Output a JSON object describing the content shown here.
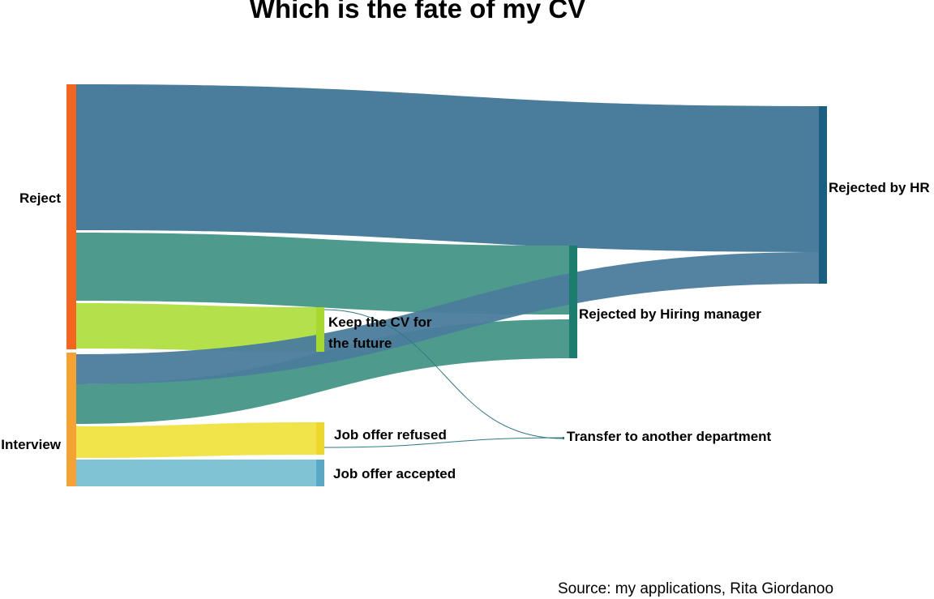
{
  "title": "Which is the fate of my CV",
  "source": "Source: my applications, Rita Giordanoo",
  "nodes": {
    "reject": {
      "label": "Reject",
      "color": "#f2661f"
    },
    "interview": {
      "label": "Interview",
      "color": "#f4a332"
    },
    "keep_cv": {
      "label_lines": [
        "Keep the CV for",
        "the future"
      ],
      "color": "#a8d82d"
    },
    "job_offer_refused": {
      "label": "Job offer refused",
      "color": "#eed72b"
    },
    "job_offer_accepted": {
      "label": "Job offer accepted",
      "color": "#5aa9c4"
    },
    "rejected_hiring_manager": {
      "label": "Rejected by Hiring manager",
      "color": "#1a7d6e"
    },
    "transfer": {
      "label": "Transfer to another department",
      "color": "#2f6c84"
    },
    "rejected_hr": {
      "label": "Rejected by HR",
      "color": "#1b5e84"
    }
  },
  "flow_colors": {
    "rejected_hr": "#4a7c9c",
    "hiring_manager": "#4e9b8e",
    "keep_cv": "#b4e04c",
    "refused": "#f0e44a",
    "accepted": "#7fc3d4",
    "transfer_hr": "#2f7a84"
  }
}
